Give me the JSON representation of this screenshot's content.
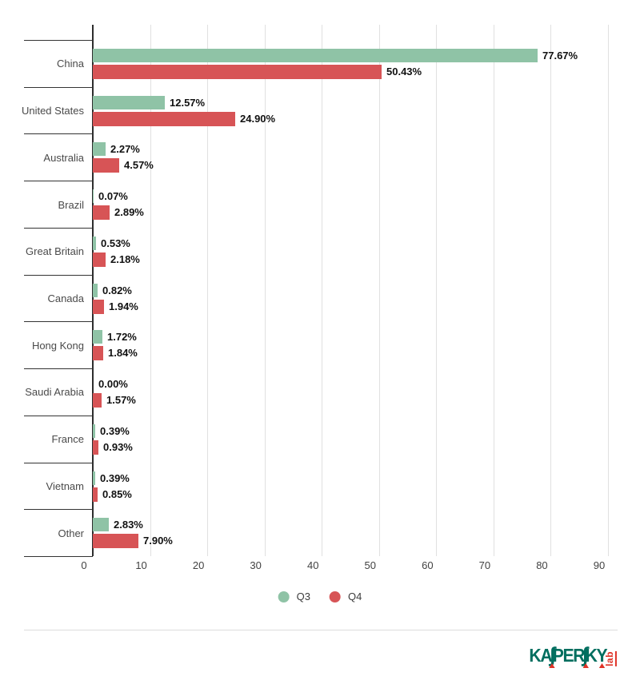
{
  "chart_data": {
    "type": "bar",
    "orientation": "horizontal",
    "title": "",
    "xlabel": "",
    "ylabel": "",
    "categories": [
      "China",
      "United States",
      "Australia",
      "Brazil",
      "Great Britain",
      "Canada",
      "Hong Kong",
      "Saudi Arabia",
      "France",
      "Vietnam",
      "Other"
    ],
    "series": [
      {
        "name": "Q3",
        "color": "#8FC3A6",
        "values": [
          77.67,
          12.57,
          2.27,
          0.07,
          0.53,
          0.82,
          1.72,
          0.0,
          0.39,
          0.39,
          2.83
        ]
      },
      {
        "name": "Q4",
        "color": "#D75456",
        "values": [
          50.43,
          24.9,
          4.57,
          2.89,
          2.18,
          1.94,
          1.84,
          1.57,
          0.93,
          0.85,
          7.9
        ]
      }
    ],
    "value_label_suffix": "%",
    "value_label_decimals": 2,
    "x_ticks": [
      0,
      10,
      20,
      30,
      40,
      50,
      60,
      70,
      80,
      90
    ],
    "xlim": [
      0,
      90
    ],
    "grid": true,
    "legend_position": "bottom-center"
  },
  "colors": {
    "q3_green": "#8FC3A6",
    "q4_red": "#D75456",
    "gridline": "#E0E0E0",
    "axis": "#2D2D2D",
    "divider": "#DCDCDC"
  },
  "branding": {
    "wordmark_parts": [
      "KA",
      "∫",
      "PER",
      "∫",
      "KY"
    ],
    "wordmark_full": "KASPERSKY",
    "sub_label": "lab",
    "green": "#006E5F",
    "red": "#DF3327"
  }
}
